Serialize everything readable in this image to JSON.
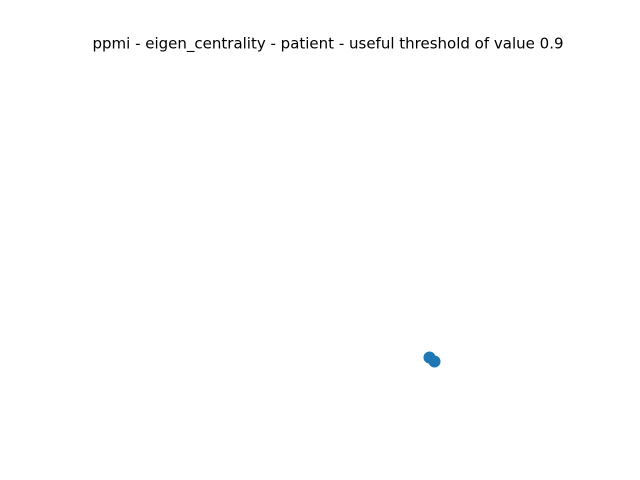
{
  "title": "ppmi - eigen_centrality - patient - useful threshold of value 0.9"
}
